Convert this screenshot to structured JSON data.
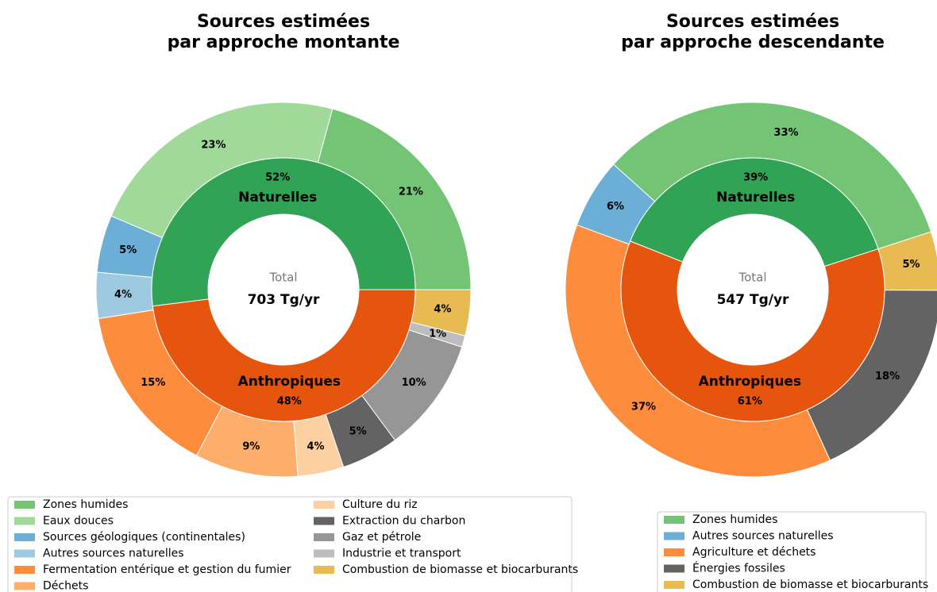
{
  "chart_data": [
    {
      "type": "nested_pie",
      "title": [
        "Sources estimées",
        "par approche montante"
      ],
      "center_label": "Total",
      "total_label": "703 Tg/yr",
      "inner": {
        "categories": [
          "Naturelles",
          "Anthropiques"
        ],
        "values": [
          52,
          48
        ],
        "value_labels": [
          "52%",
          "48%"
        ],
        "colors": [
          "#31a354",
          "#e6550d"
        ]
      },
      "outer": {
        "categories": [
          "Zones humides",
          "Eaux douces",
          "Sources géologiques (continentales)",
          "Autres sources naturelles",
          "Fermentation entérique et gestion du fumier",
          "Déchets",
          "Culture du riz",
          "Extraction du charbon",
          "Gaz et pétrole",
          "Industrie et transport",
          "Combustion de biomasse et biocarburants"
        ],
        "values": [
          21,
          23,
          5,
          4,
          15,
          9,
          4,
          5,
          10,
          1,
          4
        ],
        "value_labels": [
          "21%",
          "23%",
          "5%",
          "4%",
          "15%",
          "9%",
          "4%",
          "5%",
          "10%",
          "1%",
          "4%"
        ],
        "colors": [
          "#74c476",
          "#a1d99b",
          "#6baed6",
          "#9ecae1",
          "#fd8d3c",
          "#fdae6b",
          "#fdd0a2",
          "#636363",
          "#969696",
          "#bdbdbd",
          "#e7ba52"
        ]
      }
    },
    {
      "type": "nested_pie",
      "title": [
        "Sources estimées",
        "par approche descendante"
      ],
      "center_label": "Total",
      "total_label": "547 Tg/yr",
      "inner": {
        "categories": [
          "Naturelles",
          "Anthropiques"
        ],
        "values": [
          39,
          61
        ],
        "value_labels": [
          "39%",
          "61%"
        ],
        "colors": [
          "#31a354",
          "#e6550d"
        ]
      },
      "outer": {
        "categories": [
          "Zones humides",
          "Autres sources naturelles",
          "Agriculture et déchets",
          "Énergies fossiles",
          "Combustion de biomasse et biocarburants"
        ],
        "values": [
          33,
          6,
          37,
          18,
          5
        ],
        "value_labels": [
          "33%",
          "6%",
          "37%",
          "18%",
          "5%"
        ],
        "colors": [
          "#74c476",
          "#6baed6",
          "#fd8d3c",
          "#636363",
          "#e7ba52"
        ]
      }
    }
  ]
}
